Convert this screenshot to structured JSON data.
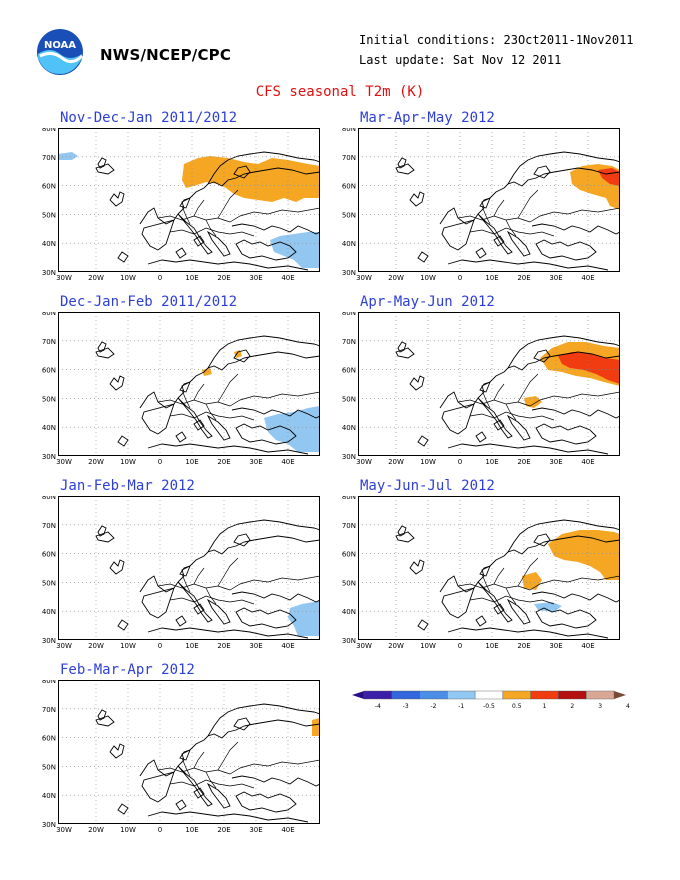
{
  "header": {
    "org": "NWS/NCEP/CPC",
    "logo_text": "NOAA",
    "initial_conditions": "Initial conditions: 23Oct2011-1Nov2011",
    "last_update": "Last update: Sat Nov 12 2011"
  },
  "title": "CFS seasonal T2m (K)",
  "lat_ticks": [
    "80N",
    "70N",
    "60N",
    "50N",
    "40N",
    "30N"
  ],
  "lon_ticks": [
    "30W",
    "20W",
    "10W",
    "0",
    "10E",
    "20E",
    "30E",
    "40E"
  ],
  "colors": {
    "title": "#e01010",
    "panel_title": "#2e3fd6",
    "pos_1": "#f5a623",
    "pos_2": "#f03c10",
    "neg_1": "#92c7f2"
  },
  "panels": [
    {
      "title": "Nov-Dec-Jan 2011/2012"
    },
    {
      "title": "Mar-Apr-May 2012"
    },
    {
      "title": "Dec-Jan-Feb 2011/2012"
    },
    {
      "title": "Apr-May-Jun 2012"
    },
    {
      "title": "Jan-Feb-Mar 2012"
    },
    {
      "title": "May-Jun-Jul 2012"
    },
    {
      "title": "Feb-Mar-Apr 2012"
    }
  ],
  "colorbar": {
    "labels": [
      "-4",
      "-3",
      "-2",
      "-1",
      "-0.5",
      "0.5",
      "1",
      "2",
      "3",
      "4"
    ],
    "colors": [
      "#3b1fa8",
      "#3366dd",
      "#4c8de8",
      "#92c7f2",
      "#ffffff",
      "#f5a623",
      "#f03c10",
      "#b41010",
      "#d9a894"
    ],
    "low_end": "#2a0e88",
    "high_end": "#7a4a38"
  }
}
